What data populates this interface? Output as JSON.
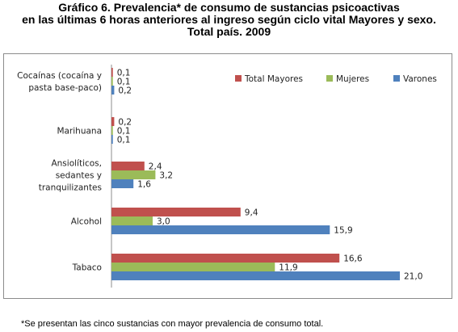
{
  "title_lines": [
    "Gráfico 6. Prevalencia* de consumo de sustancias psicoactivas",
    "en las últimas 6 horas anteriores al ingreso según ciclo vital Mayores y sexo.",
    "Total país. 2009"
  ],
  "footnote": "*Se presentan las cinco sustancias con mayor prevalencia de consumo total.",
  "chart_data": {
    "type": "bar",
    "orientation": "horizontal",
    "title": "Gráfico 6. Prevalencia* de consumo de sustancias psicoactivas en las últimas 6 horas anteriores al ingreso según ciclo vital Mayores y sexo. Total país. 2009",
    "categories": [
      [
        "Cocaínas (cocaína y",
        "pasta base-paco)"
      ],
      [
        "Marihuana"
      ],
      [
        "Ansiolíticos,",
        "sedantes y",
        "tranquilizantes"
      ],
      [
        "Alcohol"
      ],
      [
        "Tabaco"
      ]
    ],
    "series": [
      {
        "name": "Total Mayores",
        "color": "#c0504d",
        "values": [
          0.1,
          0.2,
          2.4,
          9.4,
          16.6
        ],
        "labels": [
          "0,1",
          "0,2",
          "2,4",
          "9,4",
          "16,6"
        ]
      },
      {
        "name": "Mujeres",
        "color": "#9bbb59",
        "values": [
          0.1,
          0.1,
          3.2,
          3.0,
          11.9
        ],
        "labels": [
          "0,1",
          "0,1",
          "3,2",
          "3,0",
          "11,9"
        ]
      },
      {
        "name": "Varones",
        "color": "#4f81bd",
        "values": [
          0.2,
          0.1,
          1.6,
          15.9,
          21.0
        ],
        "labels": [
          "0,2",
          "0,1",
          "1,6",
          "15,9",
          "21,0"
        ]
      }
    ],
    "xlim": [
      0,
      22
    ],
    "grid": false,
    "legend_position": "top-right",
    "xlabel": "",
    "ylabel": ""
  }
}
